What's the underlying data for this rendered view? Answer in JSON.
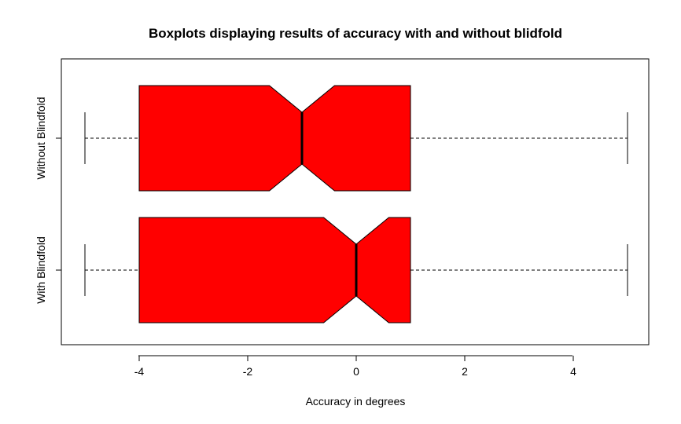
{
  "chart_data": {
    "type": "boxplot",
    "title": "Boxplots displaying results of accuracy with and without blidfold",
    "xlabel": "Accuracy in degrees",
    "ylabel": "",
    "orientation": "horizontal",
    "notched": true,
    "xlim": [
      -5.5,
      5.5
    ],
    "x_ticks": [
      -4,
      -2,
      0,
      2,
      4
    ],
    "x_tick_labels": [
      "-4",
      "-2",
      "0",
      "2",
      "4"
    ],
    "box_color": "#ff0000",
    "grid": false,
    "legend": "none",
    "groups": [
      {
        "name": "With Blindfold",
        "whisker_low": -5,
        "q1": -4,
        "median": 0,
        "q3": 1,
        "whisker_high": 5,
        "notch_low": -0.6,
        "notch_high": 0.6
      },
      {
        "name": "Without Blindfold",
        "whisker_low": -5,
        "q1": -4,
        "median": -1,
        "q3": 1,
        "whisker_high": 5,
        "notch_low": -1.6,
        "notch_high": -0.4
      }
    ]
  }
}
